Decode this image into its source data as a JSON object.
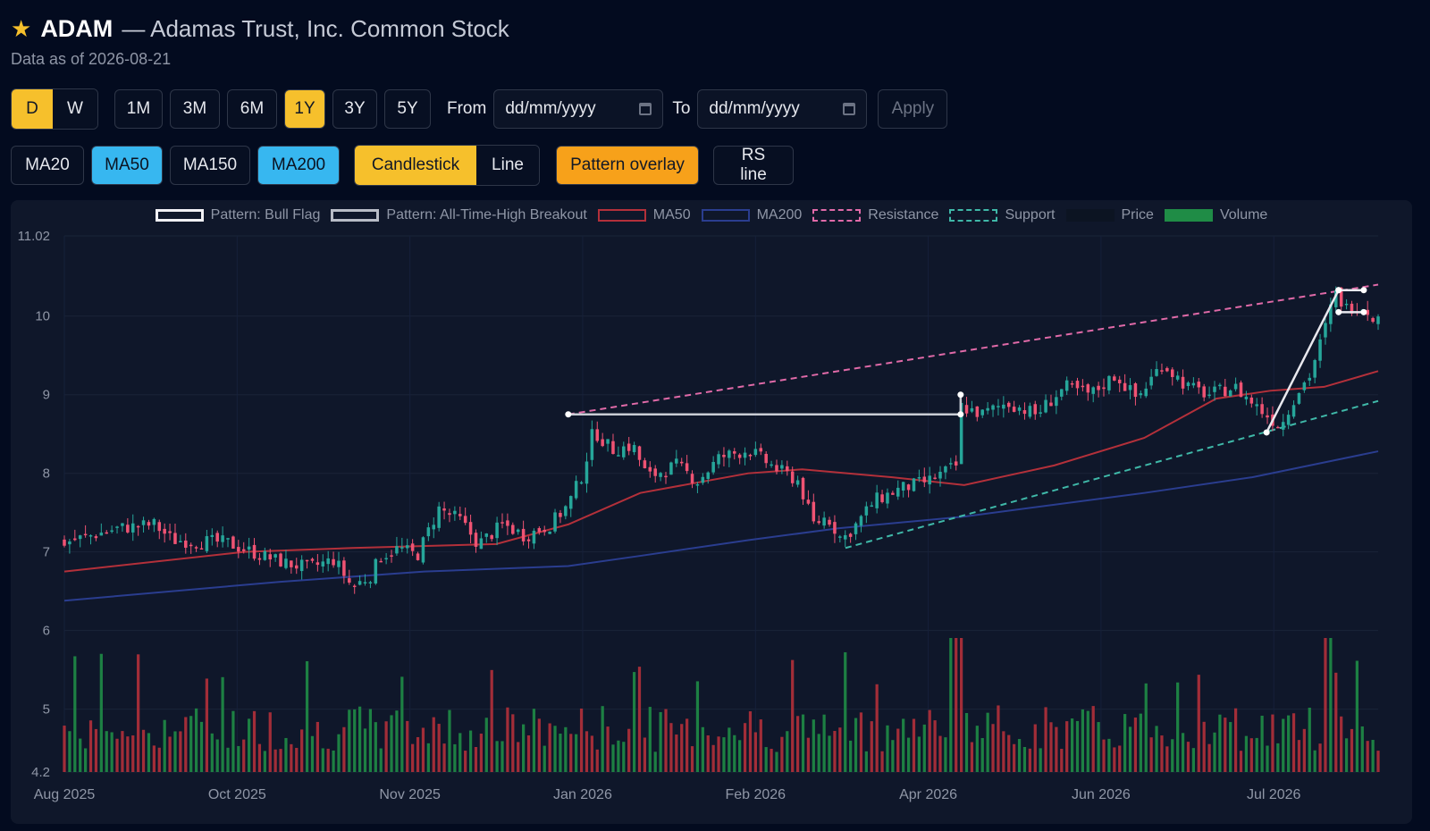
{
  "header": {
    "star_icon": "star-icon",
    "ticker": "ADAM",
    "company": "— Adamas Trust, Inc. Common Stock",
    "as_of": "Data as of 2026-08-21"
  },
  "controls": {
    "interval": [
      {
        "label": "D",
        "active": true
      },
      {
        "label": "W",
        "active": false
      }
    ],
    "ranges": [
      {
        "label": "1M",
        "active": false
      },
      {
        "label": "3M",
        "active": false
      },
      {
        "label": "6M",
        "active": false
      },
      {
        "label": "1Y",
        "active": true
      },
      {
        "label": "3Y",
        "active": false
      },
      {
        "label": "5Y",
        "active": false
      }
    ],
    "from_label": "From",
    "from_placeholder": "dd/mm/yyyy",
    "to_label": "To",
    "to_placeholder": "dd/mm/yyyy",
    "apply_label": "Apply",
    "ma": [
      {
        "label": "MA20",
        "active": false
      },
      {
        "label": "MA50",
        "active": true
      },
      {
        "label": "MA150",
        "active": false
      },
      {
        "label": "MA200",
        "active": true
      }
    ],
    "chart_type": [
      {
        "label": "Candlestick",
        "active": true
      },
      {
        "label": "Line",
        "active": false
      }
    ],
    "pattern_overlay_label": "Pattern overlay",
    "rs_line_label": "RS line"
  },
  "colors": {
    "up": "#26a69a",
    "down": "#ef5373",
    "ma50": "#b3303a",
    "ma200": "#2a3d8f",
    "resistance": "#e06aa8",
    "support": "#3fb8a8",
    "pattern": "#e8e8ee",
    "vol_up": "#1f8c46",
    "vol_down": "#b3303a"
  },
  "chart_data": {
    "type": "candlestick",
    "y_range": [
      4.2,
      11.02
    ],
    "y_ticks": [
      "11.02",
      "10",
      "9",
      "8",
      "7",
      "6",
      "5",
      "4.2"
    ],
    "x_ticks": [
      "Aug 2025",
      "Oct 2025",
      "Nov 2025",
      "Jan 2026",
      "Feb 2026",
      "Apr 2026",
      "Jun 2026",
      "Jul 2026"
    ],
    "legend": [
      "Pattern: Bull Flag",
      "Pattern: All-Time-High Breakout",
      "MA50",
      "MA200",
      "Resistance",
      "Support",
      "Price",
      "Volume"
    ],
    "close_path": [
      [
        0,
        7.12
      ],
      [
        15,
        7.3
      ],
      [
        25,
        7.35
      ],
      [
        30,
        7.15
      ],
      [
        45,
        7.12
      ],
      [
        55,
        6.95
      ],
      [
        62,
        6.85
      ],
      [
        68,
        6.8
      ],
      [
        75,
        6.9
      ],
      [
        80,
        6.55
      ],
      [
        85,
        6.7
      ],
      [
        88,
        6.95
      ],
      [
        93,
        7.05
      ],
      [
        98,
        6.95
      ],
      [
        104,
        7.55
      ],
      [
        110,
        7.4
      ],
      [
        115,
        7.1
      ],
      [
        122,
        7.35
      ],
      [
        128,
        7.2
      ],
      [
        135,
        7.35
      ],
      [
        140,
        7.6
      ],
      [
        144,
        8.0
      ],
      [
        147,
        8.55
      ],
      [
        152,
        8.3
      ],
      [
        158,
        8.35
      ],
      [
        162,
        7.95
      ],
      [
        170,
        8.1
      ],
      [
        176,
        7.9
      ],
      [
        182,
        8.2
      ],
      [
        190,
        8.3
      ],
      [
        198,
        8.05
      ],
      [
        204,
        7.9
      ],
      [
        208,
        7.35
      ],
      [
        212,
        7.45
      ],
      [
        216,
        7.15
      ],
      [
        220,
        7.35
      ],
      [
        225,
        7.65
      ],
      [
        232,
        7.8
      ],
      [
        240,
        7.9
      ],
      [
        248,
        8.1
      ],
      [
        249,
        8.85
      ],
      [
        255,
        8.75
      ],
      [
        262,
        8.9
      ],
      [
        270,
        8.75
      ],
      [
        278,
        9.1
      ],
      [
        285,
        9.0
      ],
      [
        292,
        9.25
      ],
      [
        298,
        8.95
      ],
      [
        305,
        9.4
      ],
      [
        312,
        9.1
      ],
      [
        318,
        9.0
      ],
      [
        325,
        9.1
      ],
      [
        330,
        8.9
      ],
      [
        335,
        8.7
      ],
      [
        338,
        8.6
      ],
      [
        342,
        9.0
      ],
      [
        346,
        9.25
      ],
      [
        350,
        9.8
      ],
      [
        353,
        10.3
      ],
      [
        356,
        10.1
      ],
      [
        360,
        10.15
      ],
      [
        365,
        9.95
      ]
    ],
    "ma50_path": [
      [
        0,
        6.75
      ],
      [
        50,
        7.0
      ],
      [
        80,
        7.05
      ],
      [
        120,
        7.1
      ],
      [
        140,
        7.35
      ],
      [
        160,
        7.75
      ],
      [
        190,
        8.0
      ],
      [
        205,
        8.05
      ],
      [
        230,
        7.95
      ],
      [
        250,
        7.85
      ],
      [
        275,
        8.1
      ],
      [
        300,
        8.45
      ],
      [
        320,
        8.95
      ],
      [
        335,
        9.05
      ],
      [
        350,
        9.1
      ],
      [
        365,
        9.3
      ]
    ],
    "ma200_path": [
      [
        0,
        6.38
      ],
      [
        60,
        6.62
      ],
      [
        100,
        6.75
      ],
      [
        140,
        6.82
      ],
      [
        160,
        6.95
      ],
      [
        190,
        7.15
      ],
      [
        215,
        7.3
      ],
      [
        250,
        7.45
      ],
      [
        300,
        7.75
      ],
      [
        330,
        7.95
      ],
      [
        365,
        8.28
      ]
    ],
    "resistance": [
      [
        140,
        8.75
      ],
      [
        365,
        10.4
      ]
    ],
    "support": [
      [
        217,
        7.05
      ],
      [
        365,
        8.92
      ]
    ],
    "bull_flag": {
      "pole": [
        [
          334,
          8.52
        ],
        [
          354,
          10.33
        ]
      ],
      "flag_top": [
        [
          354,
          10.33
        ],
        [
          361,
          10.33
        ]
      ],
      "flag_bottom": [
        [
          354,
          10.05
        ],
        [
          361,
          10.05
        ]
      ]
    },
    "ath_breakout": [
      [
        140,
        8.75
      ],
      [
        249,
        8.75
      ],
      [
        249,
        9.0
      ]
    ],
    "volume_max": 8.5
  }
}
